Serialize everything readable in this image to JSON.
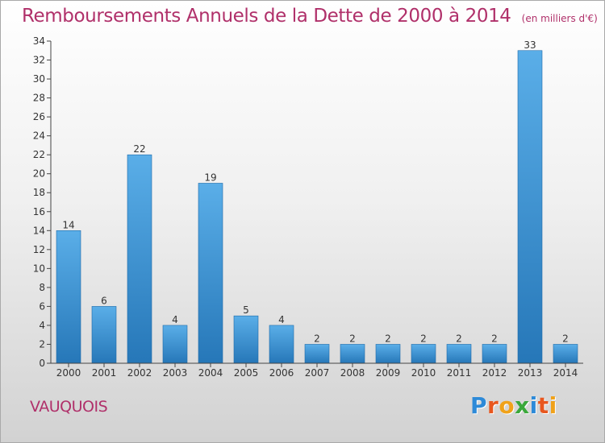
{
  "header": {
    "title": "Remboursements Annuels de la Dette de 2000 à 2014",
    "unit": "(en milliers d'€)"
  },
  "footer": {
    "commune": "VAUQUOIS",
    "logo_letters": [
      "P",
      "r",
      "o",
      "x",
      "i",
      "t",
      "i"
    ],
    "logo_colors": [
      "#2d8ad8",
      "#e8571f",
      "#f0a21a",
      "#3aa83a",
      "#2d8ad8",
      "#e8571f",
      "#f0a21a"
    ]
  },
  "colors": {
    "bar_top": "#5aaee8",
    "bar_bottom": "#2677b8",
    "axis": "#444444",
    "grid": "#bbbbbb",
    "title": "#b0306a"
  },
  "chart_data": {
    "type": "bar",
    "categories": [
      "2000",
      "2001",
      "2002",
      "2003",
      "2004",
      "2005",
      "2006",
      "2007",
      "2008",
      "2009",
      "2010",
      "2011",
      "2012",
      "2013",
      "2014"
    ],
    "values": [
      14,
      6,
      22,
      4,
      19,
      5,
      4,
      2,
      2,
      2,
      2,
      2,
      2,
      33,
      2
    ],
    "ylim": [
      0,
      34
    ],
    "yticks": [
      0,
      2,
      4,
      6,
      8,
      10,
      12,
      14,
      16,
      18,
      20,
      22,
      24,
      26,
      28,
      30,
      32,
      34
    ],
    "data_labels": true,
    "grid": false,
    "legend": "none"
  }
}
